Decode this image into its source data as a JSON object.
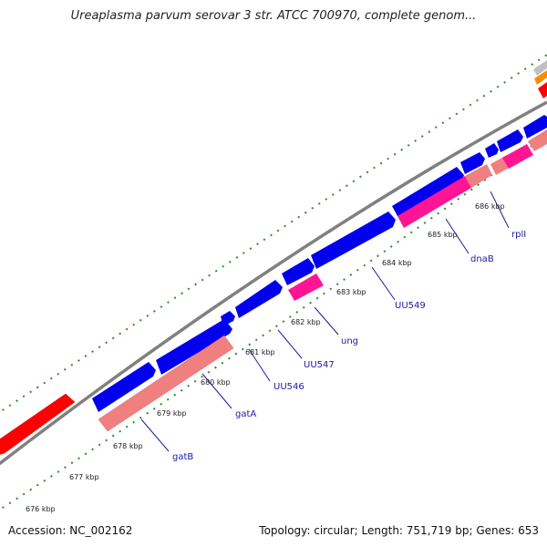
{
  "header": {
    "title": "Ureaplasma parvum serovar 3 str. ATCC 700970, complete genom..."
  },
  "footer": {
    "accession": "Accession: NC_002162",
    "stats": "Topology: circular; Length: 751,719 bp; Genes: 653"
  },
  "colors": {
    "forward_gene": "#0000ee",
    "reverse_gene": "#f08080",
    "rna_gene": "#ff1493",
    "backbone": "#808080",
    "tick": "#2e8b2e",
    "label": "#1a1aa6",
    "red_feature": "#ff0000",
    "orange_feature": "#ff8c00",
    "gray_feature": "#c0c0c0"
  },
  "kbp_labels": [
    "676 kbp",
    "677 kbp",
    "678 kbp",
    "679 kbp",
    "680 kbp",
    "681 kbp",
    "682 kbp",
    "683 kbp",
    "684 kbp",
    "685 kbp",
    "686 kbp"
  ],
  "gene_labels": [
    "gatB",
    "gatA",
    "UU546",
    "UU547",
    "ung",
    "UU549",
    "dnaB",
    "rplI"
  ]
}
